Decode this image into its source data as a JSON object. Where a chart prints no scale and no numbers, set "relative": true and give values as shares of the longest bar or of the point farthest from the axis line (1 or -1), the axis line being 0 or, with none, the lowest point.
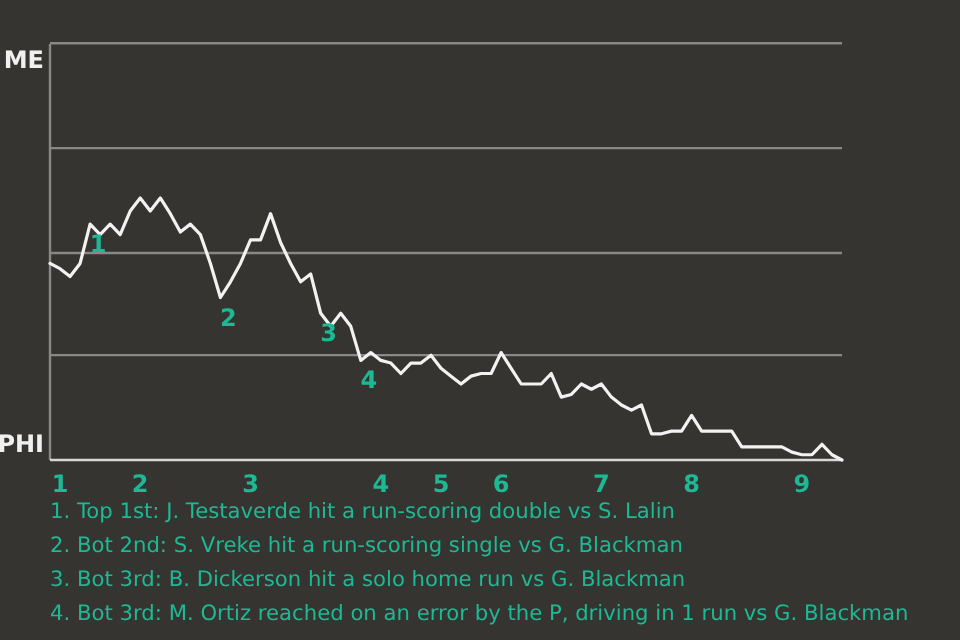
{
  "chart_data": {
    "type": "line",
    "relative": true,
    "categories": [
      null,
      "1",
      null,
      null,
      null,
      null,
      null,
      null,
      null,
      "2",
      null,
      null,
      null,
      null,
      null,
      null,
      null,
      null,
      null,
      null,
      "3",
      null,
      null,
      null,
      null,
      null,
      null,
      null,
      null,
      null,
      null,
      null,
      null,
      "4",
      null,
      null,
      null,
      null,
      null,
      "5",
      null,
      null,
      null,
      null,
      null,
      "6",
      null,
      null,
      null,
      null,
      null,
      null,
      null,
      null,
      null,
      "7",
      null,
      null,
      null,
      null,
      null,
      null,
      null,
      null,
      "8",
      null,
      null,
      null,
      null,
      null,
      null,
      null,
      null,
      null,
      null,
      "9",
      null,
      null,
      null,
      null
    ],
    "series": [
      {
        "color": "#f2f2f2",
        "values": [
          0.75,
          0.73,
          0.7,
          0.75,
          0.9,
          0.86,
          0.9,
          0.86,
          0.95,
          1,
          0.95,
          1,
          0.94,
          0.87,
          0.9,
          0.86,
          0.75,
          0.62,
          0.68,
          0.75,
          0.84,
          0.84,
          0.94,
          0.83,
          0.75,
          0.68,
          0.71,
          0.56,
          0.51,
          0.56,
          0.51,
          0.38,
          0.41,
          0.38,
          0.37,
          0.33,
          0.37,
          0.37,
          0.4,
          0.35,
          0.32,
          0.29,
          0.32,
          0.33,
          0.33,
          0.41,
          0.35,
          0.29,
          0.29,
          0.29,
          0.33,
          0.24,
          0.25,
          0.29,
          0.27,
          0.29,
          0.24,
          0.21,
          0.19,
          0.21,
          0.1,
          0.1,
          0.11,
          0.11,
          0.17,
          0.11,
          0.11,
          0.11,
          0.11,
          0.05,
          0.05,
          0.05,
          0.05,
          0.05,
          0.03,
          0.02,
          0.02,
          0.06,
          0.02,
          0
        ]
      }
    ],
    "marker": "none",
    "line_style": "solid",
    "ref_lines": [
      {
        "axis": "y",
        "value": 0.4,
        "color": "#8a8886"
      },
      {
        "axis": "y",
        "value": 0.79,
        "color": "#8a8886"
      },
      {
        "axis": "y",
        "value": 1.19,
        "color": "#8a8886"
      },
      {
        "axis": "y",
        "value": 1.59,
        "color": "#8a8886"
      }
    ],
    "annotations": [
      "ME",
      "PHI",
      {
        "text": "1",
        "y": 0.9
      },
      {
        "text": "2",
        "y": 0.62
      },
      {
        "text": "3",
        "y": 0.56
      },
      {
        "text": "4",
        "y": 0.38
      },
      "1. Top 1st: J. Testaverde hit a run-scoring double vs S. Lalin",
      "2. Bot 2nd: S. Vreke hit a run-scoring single vs G. Blackman",
      "3. Bot 3rd: B. Dickerson hit a solo home run vs G. Blackman",
      "4. Bot 3rd: M. Ortiz reached on an error by the P, driving in 1 run vs G. Blackman"
    ]
  }
}
